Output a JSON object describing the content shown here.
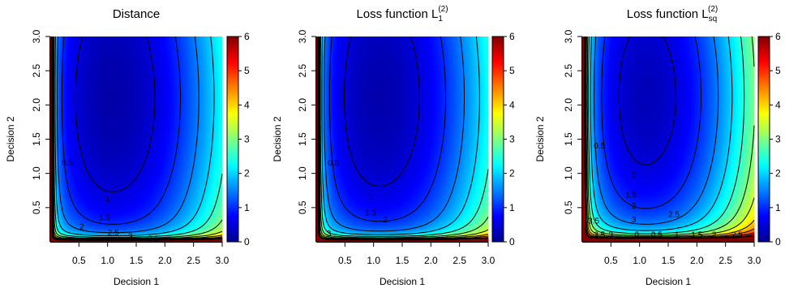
{
  "chart_data": [
    {
      "type": "heatmap",
      "title": "Distance",
      "title_sub": "",
      "title_sup": "",
      "xlabel": "Decision 1",
      "ylabel": "Decision 2",
      "xlim": [
        0,
        3
      ],
      "ylim": [
        0,
        3
      ],
      "xticks": [
        "0.5",
        "1.0",
        "1.5",
        "2.0",
        "2.5",
        "3.0"
      ],
      "yticks": [
        "0.5",
        "1.0",
        "1.5",
        "2.0",
        "2.5",
        "3.0"
      ],
      "colorbar_range": [
        0,
        6
      ],
      "colorbar_ticks": [
        "0",
        "1",
        "2",
        "3",
        "4",
        "5",
        "6"
      ],
      "colormap": [
        "#00008f",
        "#0000ff",
        "#0080ff",
        "#00ffff",
        "#80ff80",
        "#ffff00",
        "#ff8000",
        "#ff0000",
        "#800000"
      ],
      "minimum": [
        1.0,
        2.0
      ],
      "contour_levels": [
        0.5,
        1,
        1.5,
        2,
        2.5,
        3,
        3.5,
        4,
        4.5,
        5,
        5.5,
        6
      ],
      "contour_labels": [
        {
          "text": "0.5",
          "x": 0.3,
          "y": 1.15
        },
        {
          "text": "1",
          "x": 1.0,
          "y": 0.62
        },
        {
          "text": "1.5",
          "x": 0.95,
          "y": 0.35
        },
        {
          "text": "2",
          "x": 0.55,
          "y": 0.22
        },
        {
          "text": "2.5",
          "x": 1.1,
          "y": 0.13
        },
        {
          "text": "3",
          "x": 1.4,
          "y": 0.08
        },
        {
          "text": "3.5",
          "x": 1.8,
          "y": 0.04
        }
      ]
    },
    {
      "type": "heatmap",
      "title": "Loss function L",
      "title_sub": "1",
      "title_sup": "(2)",
      "xlabel": "Decision 1",
      "ylabel": "Decision 2",
      "xlim": [
        0,
        3
      ],
      "ylim": [
        0,
        3
      ],
      "xticks": [
        "0.5",
        "1.0",
        "1.5",
        "2.0",
        "2.5",
        "3.0"
      ],
      "yticks": [
        "0.5",
        "1.0",
        "1.5",
        "2.0",
        "2.5",
        "3.0"
      ],
      "colorbar_range": [
        0,
        6
      ],
      "colorbar_ticks": [
        "0",
        "1",
        "2",
        "3",
        "4",
        "5",
        "6"
      ],
      "colormap": [
        "#00008f",
        "#0000ff",
        "#0080ff",
        "#00ffff",
        "#80ff80",
        "#ffff00",
        "#ff8000",
        "#ff0000",
        "#800000"
      ],
      "minimum": [
        1.0,
        2.0
      ],
      "contour_levels": [
        0.5,
        1,
        1.5,
        2,
        2.5,
        3,
        3.5,
        4,
        4.5,
        5,
        5.5,
        6
      ],
      "contour_labels": [
        {
          "text": "0.5",
          "x": 0.3,
          "y": 1.15
        },
        {
          "text": "1",
          "x": 0.95,
          "y": 0.65
        },
        {
          "text": "1.5",
          "x": 0.95,
          "y": 0.42
        },
        {
          "text": "2",
          "x": 1.2,
          "y": 0.32
        },
        {
          "text": "3",
          "x": 0.22,
          "y": 0.12
        }
      ]
    },
    {
      "type": "heatmap",
      "title": "Loss function L",
      "title_sub": "sq",
      "title_sup": "(2)",
      "xlabel": "Decision 1",
      "ylabel": "Decision 2",
      "xlim": [
        0,
        3
      ],
      "ylim": [
        0,
        3
      ],
      "xticks": [
        "0.5",
        "1.0",
        "1.5",
        "2.0",
        "2.5",
        "3.0"
      ],
      "yticks": [
        "0.5",
        "1.0",
        "1.5",
        "2.0",
        "2.5",
        "3.0"
      ],
      "colorbar_range": [
        0,
        6
      ],
      "colorbar_ticks": [
        "0",
        "1",
        "2",
        "3",
        "4",
        "5",
        "6"
      ],
      "colormap": [
        "#00008f",
        "#0000ff",
        "#0080ff",
        "#00ffff",
        "#80ff80",
        "#ffff00",
        "#ff8000",
        "#ff0000",
        "#800000"
      ],
      "minimum": [
        1.0,
        2.0
      ],
      "contour_levels": [
        0.5,
        1,
        1.5,
        2,
        2.5,
        3,
        3.5,
        4,
        4.5,
        5,
        5.5,
        6
      ],
      "contour_labels": [
        {
          "text": "0.5",
          "x": 0.3,
          "y": 1.4
        },
        {
          "text": "1",
          "x": 0.9,
          "y": 0.98
        },
        {
          "text": "1.5",
          "x": 0.85,
          "y": 0.68
        },
        {
          "text": "2",
          "x": 0.9,
          "y": 0.52
        },
        {
          "text": "2.5",
          "x": 1.6,
          "y": 0.4
        },
        {
          "text": "3",
          "x": 0.9,
          "y": 0.32
        },
        {
          "text": "3.5",
          "x": 0.2,
          "y": 0.3
        },
        {
          "text": "3.5",
          "x": 0.3,
          "y": 0.1
        },
        {
          "text": "3",
          "x": 0.5,
          "y": 0.1
        },
        {
          "text": "0",
          "x": 0.95,
          "y": 0.1
        },
        {
          "text": "0.5",
          "x": 1.3,
          "y": 0.1
        },
        {
          "text": "1",
          "x": 1.65,
          "y": 0.1
        },
        {
          "text": "1.5",
          "x": 2.0,
          "y": 0.1
        },
        {
          "text": "2",
          "x": 2.3,
          "y": 0.1
        },
        {
          "text": "2.5",
          "x": 2.7,
          "y": 0.1
        }
      ]
    }
  ]
}
